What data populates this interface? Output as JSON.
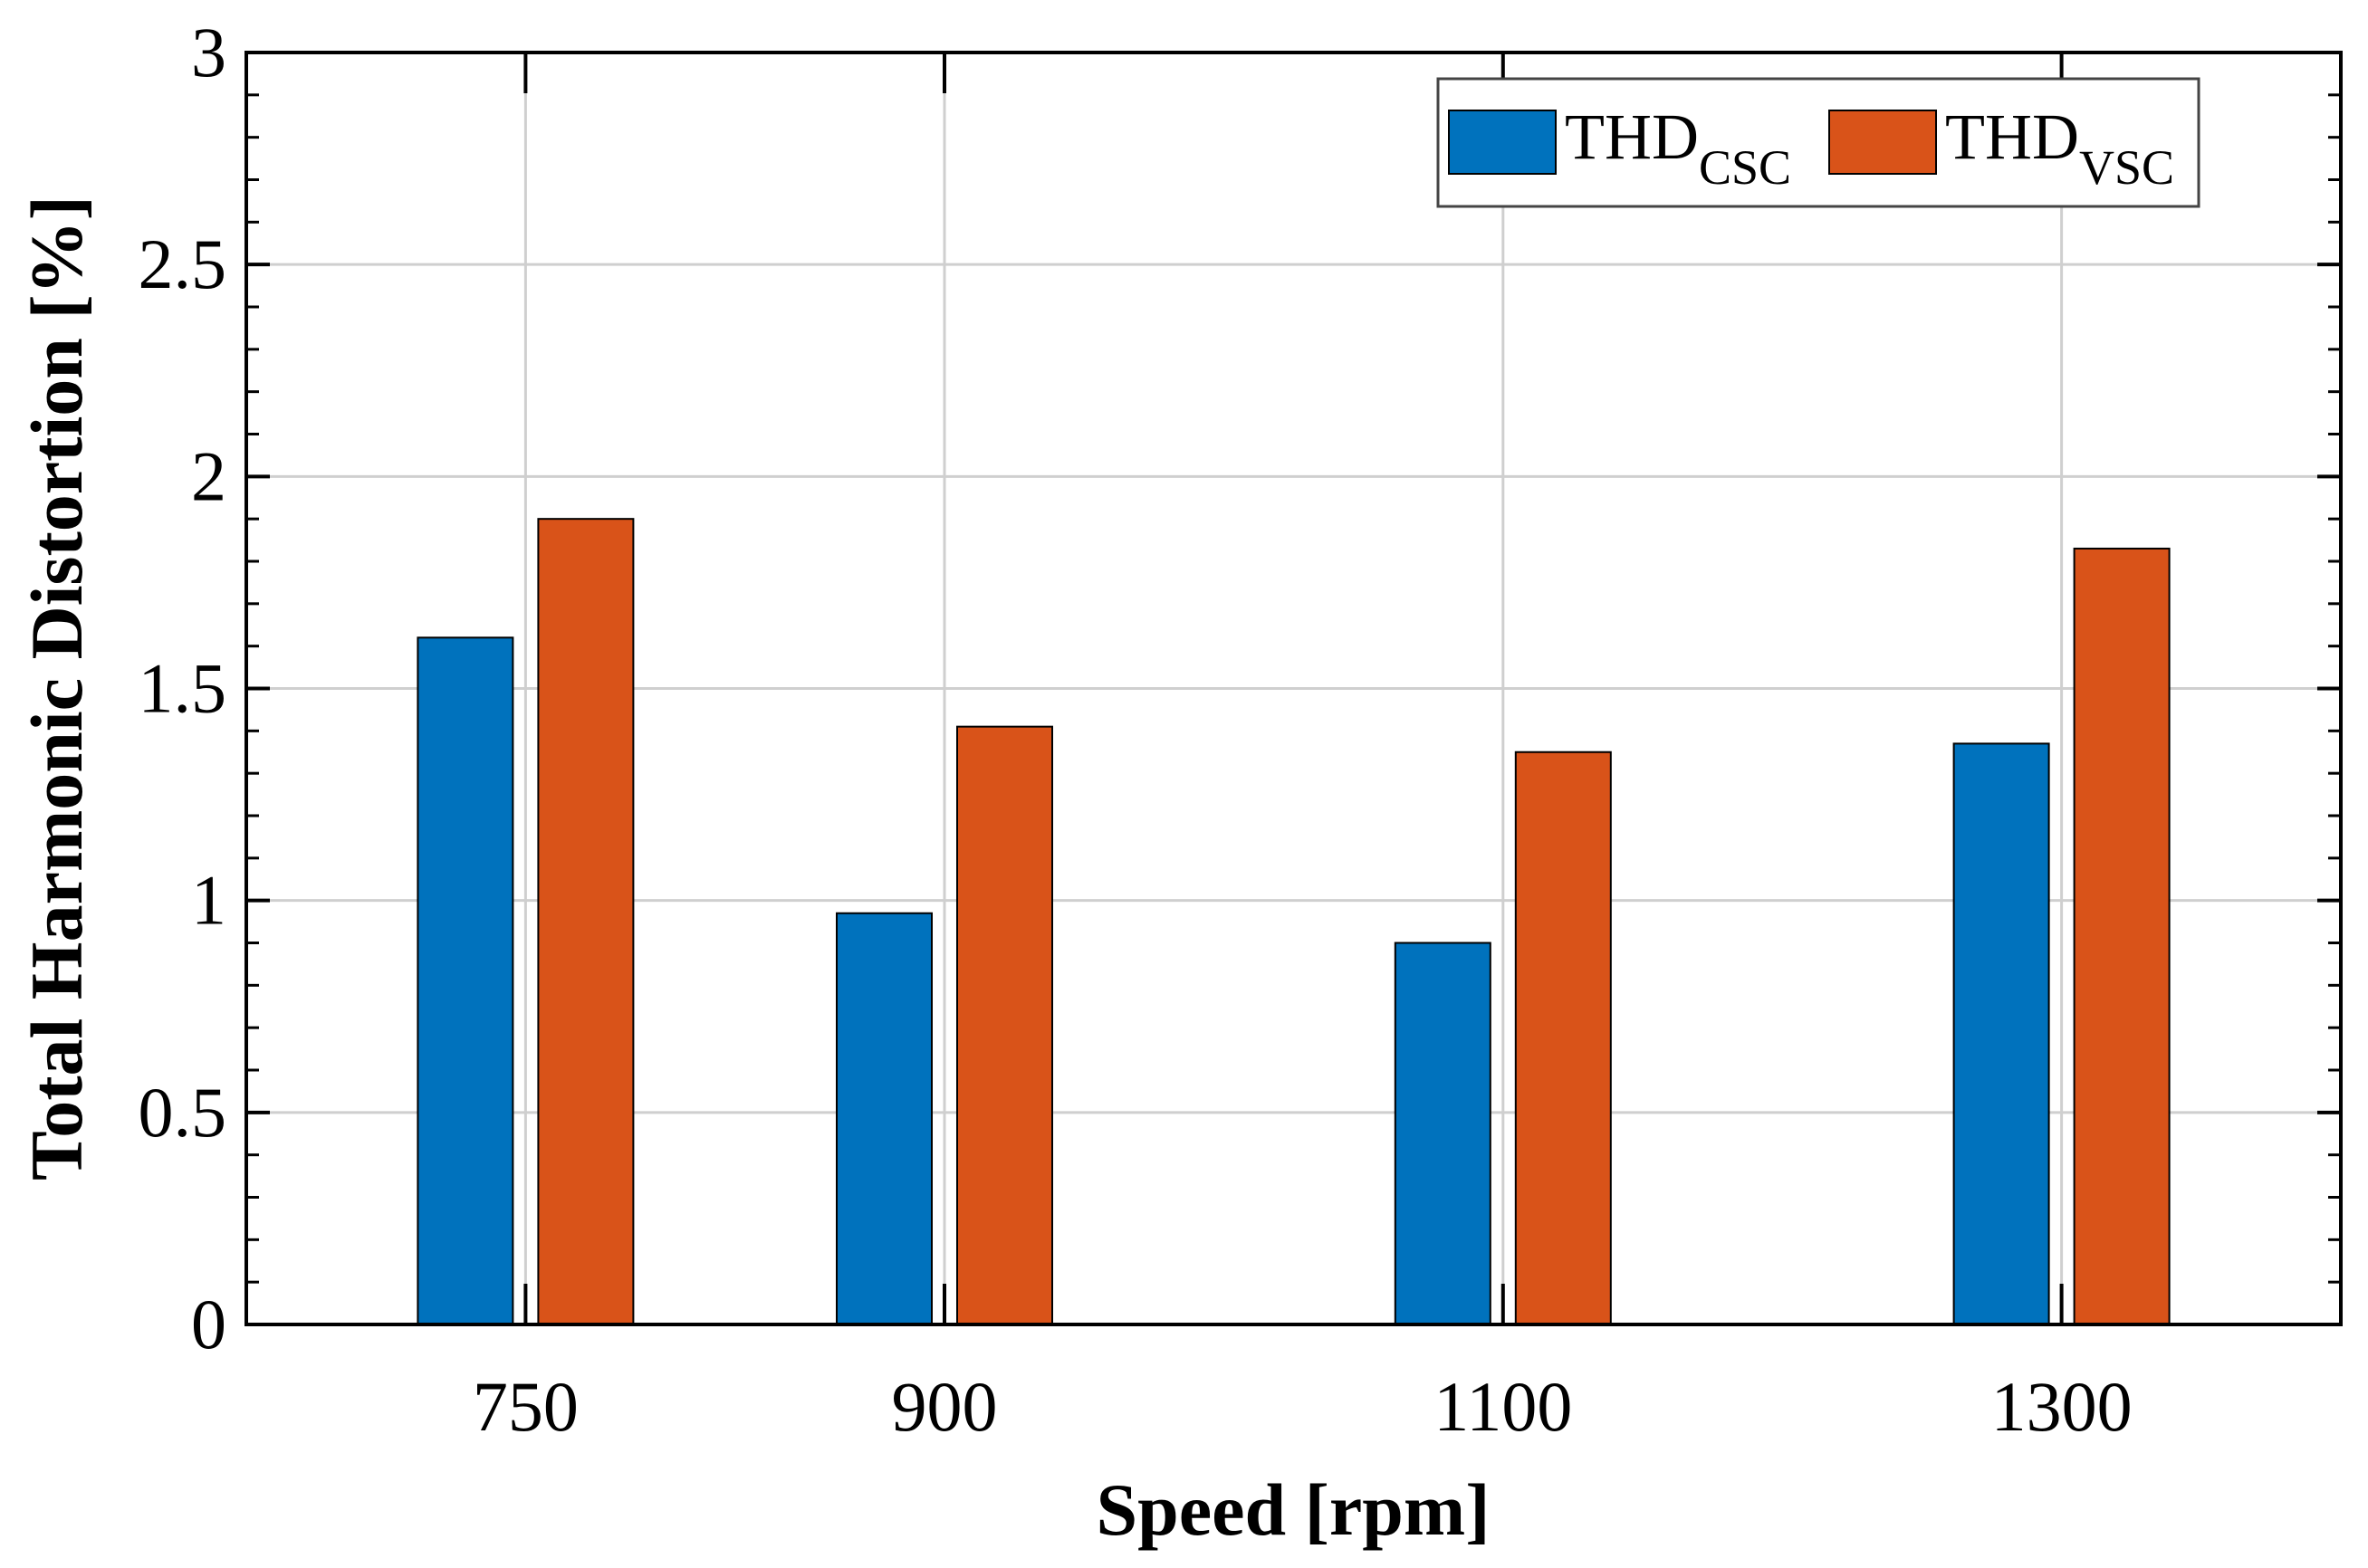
{
  "chart_data": {
    "type": "bar",
    "title": "",
    "xlabel": "Speed [rpm]",
    "ylabel": "Total Harmonic Distortion [%]",
    "categories": [
      "750",
      "900",
      "1100",
      "1300"
    ],
    "x": [
      750,
      900,
      1100,
      1300
    ],
    "xlim": [
      650,
      1400
    ],
    "ylim": [
      0,
      3
    ],
    "yticks": [
      "0",
      "0.5",
      "1",
      "1.5",
      "2",
      "2.5",
      "3"
    ],
    "grid": true,
    "legend_position": "top-right",
    "series": [
      {
        "name": "THD",
        "subscript": "CSC",
        "color": "#0072BD",
        "values": [
          1.62,
          0.97,
          0.9,
          1.37
        ]
      },
      {
        "name": "THD",
        "subscript": "VSC",
        "color": "#D95319",
        "values": [
          1.9,
          1.41,
          1.35,
          1.83
        ]
      }
    ]
  }
}
